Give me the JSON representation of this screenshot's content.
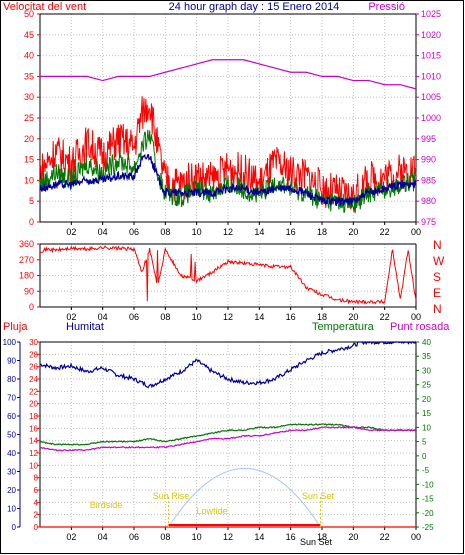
{
  "title": "24 hour graph day : 15 Enero 2014",
  "colors": {
    "red": "#ff0000",
    "blue": "#000099",
    "green": "#007700",
    "magenta": "#cc00cc",
    "light_blue": "#9cc8ff",
    "sun_label": "#d8c800",
    "grid": "#c0c0c0"
  },
  "chart_data": [
    {
      "type": "line",
      "left_label": "Velocitat del vent",
      "right_label": "Pressió",
      "x_ticks": [
        "02",
        "04",
        "06",
        "08",
        "10",
        "12",
        "14",
        "16",
        "18",
        "20",
        "22",
        "00"
      ],
      "y_left": {
        "min": 0,
        "max": 50,
        "ticks": [
          0,
          5,
          10,
          15,
          20,
          25,
          30,
          35,
          40,
          45,
          50
        ]
      },
      "y_right": {
        "min": 975,
        "max": 1025,
        "ticks": [
          975,
          980,
          985,
          990,
          995,
          1000,
          1005,
          1010,
          1015,
          1020,
          1025
        ]
      },
      "series": [
        {
          "name": "Pressió",
          "axis": "right",
          "x": [
            0,
            1,
            2,
            3,
            4,
            5,
            6,
            7,
            8,
            9,
            10,
            11,
            12,
            13,
            14,
            15,
            16,
            17,
            18,
            19,
            20,
            21,
            22,
            23,
            24
          ],
          "values": [
            1010,
            1010,
            1010,
            1010,
            1009,
            1010,
            1010,
            1010,
            1011,
            1012,
            1013,
            1014,
            1014,
            1014,
            1013,
            1012,
            1011,
            1011,
            1010,
            1010,
            1009,
            1009,
            1008,
            1008,
            1007
          ]
        },
        {
          "name": "",
          "axis": "left",
          "style": "gust",
          "x": [
            0,
            1,
            2,
            3,
            4,
            5,
            6,
            6.5,
            7,
            7.5,
            8,
            9,
            10,
            11,
            12,
            13,
            14,
            15,
            16,
            17,
            18,
            19,
            20,
            21,
            22,
            23,
            24
          ],
          "values": [
            12,
            17,
            14,
            19,
            16,
            20,
            18,
            26,
            29,
            18,
            10,
            9,
            11,
            10,
            13,
            12,
            9,
            14,
            12,
            11,
            8,
            7,
            6,
            10,
            11,
            12,
            13
          ]
        },
        {
          "name": "",
          "axis": "left",
          "style": "speed",
          "x": [
            0,
            1,
            2,
            3,
            4,
            5,
            6,
            6.5,
            7,
            7.5,
            8,
            9,
            10,
            11,
            12,
            13,
            14,
            15,
            16,
            17,
            18,
            19,
            20,
            21,
            22,
            23,
            24
          ],
          "values": [
            9,
            12,
            10,
            14,
            12,
            15,
            13,
            18,
            21,
            12,
            7,
            6,
            8,
            7,
            9,
            8,
            6,
            10,
            8,
            7,
            5,
            5,
            4,
            7,
            8,
            9,
            10
          ]
        },
        {
          "name": "",
          "axis": "left",
          "style": "avg",
          "x": [
            0,
            1,
            2,
            3,
            4,
            5,
            6,
            6.5,
            7,
            7.5,
            8,
            9,
            10,
            11,
            12,
            13,
            14,
            15,
            16,
            17,
            18,
            19,
            20,
            21,
            22,
            23,
            24
          ],
          "values": [
            8,
            9,
            9,
            10,
            10,
            11,
            11,
            15,
            16,
            11,
            7,
            7,
            7,
            7,
            8,
            8,
            7,
            8,
            8,
            7,
            5,
            5,
            5,
            7,
            8,
            9,
            9
          ]
        }
      ]
    },
    {
      "type": "line",
      "left_ticks": [
        0,
        90,
        180,
        270,
        360
      ],
      "right_labels": [
        "N",
        "W",
        "S",
        "E",
        "N"
      ],
      "x_ticks": [
        "02",
        "04",
        "06",
        "08",
        "10",
        "12",
        "14",
        "16",
        "18",
        "20",
        "22",
        "00"
      ],
      "series": [
        {
          "name": "",
          "x": [
            0,
            0.5,
            1,
            2,
            3,
            4,
            5,
            6,
            6.5,
            7,
            7.5,
            8,
            9,
            10,
            11,
            12,
            13,
            14,
            15,
            16,
            17,
            18,
            19,
            20,
            21,
            22,
            22.5,
            23,
            23.5,
            24
          ],
          "values": [
            320,
            330,
            325,
            335,
            330,
            340,
            335,
            330,
            200,
            330,
            120,
            330,
            180,
            150,
            200,
            260,
            250,
            240,
            230,
            230,
            110,
            70,
            40,
            30,
            30,
            30,
            330,
            40,
            330,
            30
          ]
        }
      ]
    },
    {
      "type": "line",
      "label_pluja": "Pluja",
      "label_humitat": "Humitat",
      "label_temperatura": "Temperatura",
      "label_punt_rosada": "Punt rosada",
      "x_ticks": [
        "02",
        "04",
        "06",
        "08",
        "10",
        "12",
        "14",
        "16",
        "18",
        "20",
        "22",
        "00"
      ],
      "y_pluja": {
        "min": 0,
        "max": 30,
        "ticks": [
          0,
          2,
          4,
          6,
          8,
          10,
          12,
          14,
          16,
          18,
          20,
          22,
          24,
          26,
          28,
          30
        ]
      },
      "y_humitat": {
        "min": 0,
        "max": 100,
        "ticks": [
          0,
          10,
          20,
          30,
          40,
          50,
          60,
          70,
          80,
          90,
          100
        ]
      },
      "y_temp": {
        "min": -25,
        "max": 40,
        "ticks": [
          -25,
          -20,
          -15,
          -10,
          -5,
          0,
          5,
          10,
          15,
          20,
          25,
          30,
          35,
          40
        ]
      },
      "series": [
        {
          "name": "Humitat",
          "axis": "humitat",
          "x": [
            0,
            1,
            2,
            3,
            4,
            5,
            6,
            7,
            8,
            9,
            10,
            11,
            12,
            13,
            14,
            15,
            16,
            17,
            18,
            19,
            20,
            20.5,
            21,
            22,
            23,
            24
          ],
          "values": [
            88,
            86,
            87,
            84,
            86,
            82,
            80,
            76,
            80,
            84,
            90,
            84,
            80,
            78,
            78,
            80,
            85,
            90,
            94,
            96,
            98,
            100,
            100,
            100,
            100,
            100
          ]
        },
        {
          "name": "Temperatura",
          "axis": "temp",
          "x": [
            0,
            1,
            2,
            3,
            4,
            5,
            6,
            7,
            8,
            9,
            10,
            11,
            12,
            13,
            14,
            15,
            16,
            17,
            18,
            19,
            20,
            21,
            22,
            23,
            24
          ],
          "values": [
            5,
            4,
            4,
            4,
            5,
            5,
            5,
            6,
            5,
            6,
            7,
            8,
            9,
            9,
            10,
            10,
            11,
            11,
            11,
            11,
            10,
            10,
            9,
            9,
            9
          ]
        },
        {
          "name": "Punt rosada",
          "axis": "temp",
          "x": [
            0,
            1,
            2,
            3,
            4,
            5,
            6,
            7,
            8,
            9,
            10,
            11,
            12,
            13,
            14,
            15,
            16,
            17,
            18,
            19,
            20,
            21,
            22,
            23,
            24
          ],
          "values": [
            3,
            2,
            2,
            2,
            3,
            3,
            3,
            3,
            3,
            4,
            5,
            6,
            6,
            7,
            7,
            8,
            9,
            9,
            10,
            10,
            10,
            9,
            9,
            9,
            9
          ]
        },
        {
          "name": "Pluja",
          "axis": "pluja",
          "x": [
            0,
            24
          ],
          "values": [
            0,
            0
          ]
        }
      ],
      "sun": {
        "birdside_label": "Birdside",
        "sunrise_label": "Sun Rise",
        "lowtide_label": "Lowtide",
        "sunset_label": "Sun Set",
        "sunset_tick_label": "Sun Set",
        "sunrise_hour": 8.2,
        "sunset_hour": 17.9,
        "noon_hour": 13.1,
        "max_elevation_pluja_units": 9.5
      }
    }
  ]
}
